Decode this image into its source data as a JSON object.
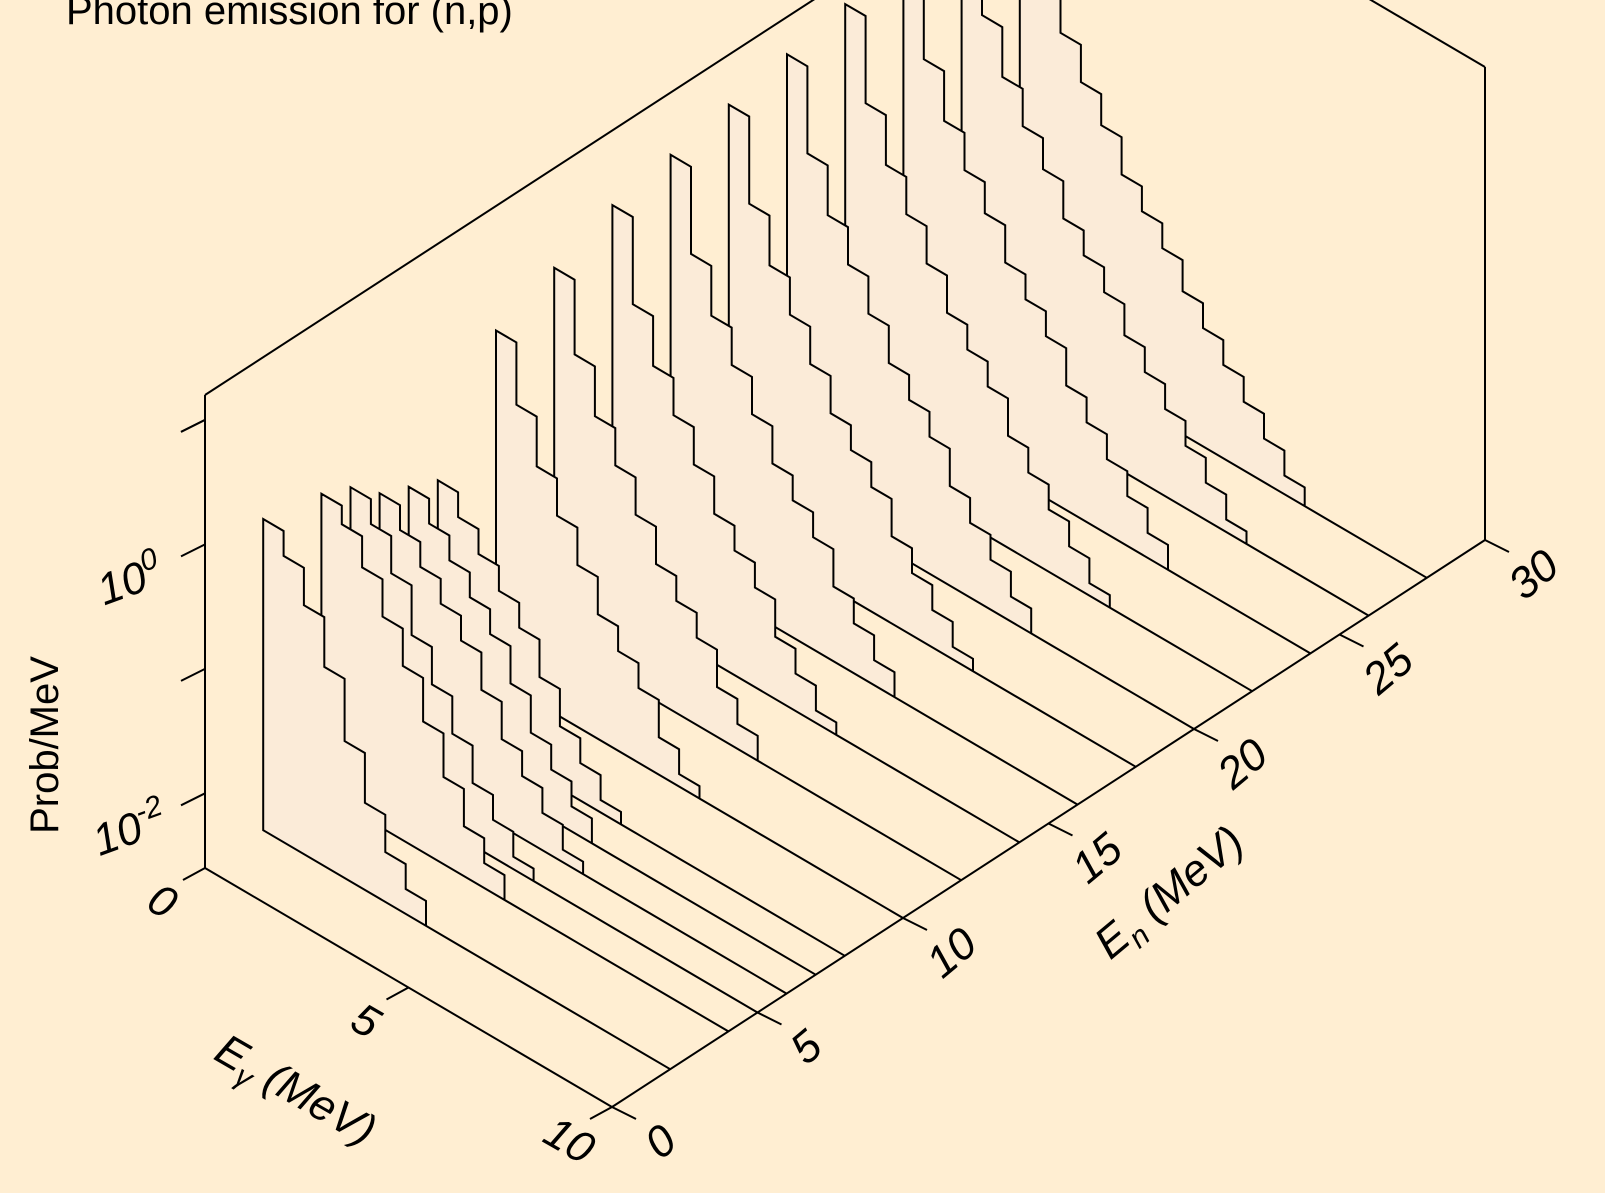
{
  "chart_data": {
    "type": "area",
    "title": "Photon emission for (n,p)",
    "xlabel": "E",
    "xlabel_sub": "γ",
    "xlabel_unit": " (MeV)",
    "ylabel": "E",
    "ylabel_sub": "n",
    "ylabel_unit": " (MeV)",
    "zlabel": "Prob/MeV",
    "x_ticks": [
      "0",
      "5",
      "10"
    ],
    "y_ticks": [
      "0",
      "5",
      "10",
      "15",
      "20",
      "25",
      "30"
    ],
    "z_ticks": [
      {
        "base": "10",
        "exp": "-2"
      },
      {
        "base": "10",
        "exp": "0"
      }
    ],
    "xlim": [
      0,
      10
    ],
    "ylim": [
      0,
      30
    ],
    "zlim_log10": [
      -2.6,
      1.2
    ],
    "z_scale": "log",
    "slice_x": [
      0.5,
      1.0,
      1.5,
      2.0,
      2.5,
      3.0,
      3.5,
      4.0,
      4.5,
      5.0,
      5.5,
      6.0,
      6.5,
      7.0,
      7.5,
      8.0
    ],
    "series": [
      {
        "En": 2,
        "log10_prob": [
          -0.1,
          -0.3,
          -0.6,
          -1.0,
          -1.5,
          -1.9,
          -2.2,
          -2.4,
          -2.6,
          -2.6,
          -2.6,
          -2.6,
          -2.6,
          -2.6,
          -2.6,
          -2.6
        ]
      },
      {
        "En": 4,
        "log10_prob": [
          -0.2,
          -0.35,
          -0.6,
          -0.9,
          -1.2,
          -1.55,
          -1.9,
          -2.2,
          -2.4,
          -2.6,
          -2.6,
          -2.6,
          -2.6,
          -2.6,
          -2.6,
          -2.6
        ]
      },
      {
        "En": 5,
        "log10_prob": [
          -0.3,
          -0.5,
          -0.8,
          -1.2,
          -1.5,
          -1.8,
          -2.1,
          -2.3,
          -2.5,
          -2.6,
          -2.6,
          -2.6,
          -2.6,
          -2.6,
          -2.6,
          -2.6
        ]
      },
      {
        "En": 6,
        "log10_prob": [
          -0.5,
          -0.7,
          -0.9,
          -1.1,
          -1.3,
          -1.6,
          -1.9,
          -2.1,
          -2.3,
          -2.5,
          -2.6,
          -2.6,
          -2.6,
          -2.6,
          -2.6,
          -2.6
        ]
      },
      {
        "En": 7,
        "log10_prob": [
          -0.6,
          -0.8,
          -1.0,
          -1.2,
          -1.4,
          -1.7,
          -2.0,
          -2.2,
          -2.4,
          -2.6,
          -2.6,
          -2.6,
          -2.6,
          -2.6,
          -2.6,
          -2.6
        ]
      },
      {
        "En": 8,
        "log10_prob": [
          -0.7,
          -0.9,
          -1.1,
          -1.3,
          -1.5,
          -1.8,
          -2.1,
          -2.3,
          -2.5,
          -2.6,
          -2.6,
          -2.6,
          -2.6,
          -2.6,
          -2.6,
          -2.6
        ]
      },
      {
        "En": 10,
        "log10_prob": [
          0.2,
          -0.3,
          -0.7,
          -1.0,
          -1.3,
          -1.6,
          -1.8,
          -2.0,
          -2.3,
          -2.5,
          -2.6,
          -2.6,
          -2.6,
          -2.6,
          -2.6,
          -2.6
        ]
      },
      {
        "En": 12,
        "log10_prob": [
          0.4,
          -0.2,
          -0.6,
          -0.9,
          -1.2,
          -1.5,
          -1.7,
          -1.9,
          -2.2,
          -2.4,
          -2.6,
          -2.6,
          -2.6,
          -2.6,
          -2.6,
          -2.6
        ]
      },
      {
        "En": 14,
        "log10_prob": [
          0.6,
          -0.1,
          -0.5,
          -0.8,
          -1.1,
          -1.4,
          -1.6,
          -1.8,
          -2.1,
          -2.3,
          -2.5,
          -2.6,
          -2.6,
          -2.6,
          -2.6,
          -2.6
        ]
      },
      {
        "En": 16,
        "log10_prob": [
          0.7,
          0.0,
          -0.4,
          -0.7,
          -1.0,
          -1.3,
          -1.5,
          -1.7,
          -2.0,
          -2.2,
          -2.4,
          -2.6,
          -2.6,
          -2.6,
          -2.6,
          -2.6
        ]
      },
      {
        "En": 18,
        "log10_prob": [
          0.8,
          0.1,
          -0.3,
          -0.6,
          -0.9,
          -1.2,
          -1.4,
          -1.6,
          -1.9,
          -2.1,
          -2.3,
          -2.5,
          -2.6,
          -2.6,
          -2.6,
          -2.6
        ]
      },
      {
        "En": 20,
        "log10_prob": [
          0.9,
          0.2,
          -0.2,
          -0.5,
          -0.8,
          -1.1,
          -1.3,
          -1.5,
          -1.8,
          -2.0,
          -2.2,
          -2.4,
          -2.6,
          -2.6,
          -2.6,
          -2.6
        ]
      },
      {
        "En": 22,
        "log10_prob": [
          1.0,
          0.3,
          -0.1,
          -0.4,
          -0.7,
          -1.0,
          -1.2,
          -1.4,
          -1.7,
          -1.9,
          -2.1,
          -2.3,
          -2.5,
          -2.6,
          -2.6,
          -2.6
        ]
      },
      {
        "En": 24,
        "log10_prob": [
          1.05,
          0.35,
          -0.05,
          -0.35,
          -0.6,
          -0.9,
          -1.1,
          -1.3,
          -1.6,
          -1.8,
          -2.0,
          -2.2,
          -2.4,
          -2.6,
          -2.6,
          -2.6
        ]
      },
      {
        "En": 26,
        "log10_prob": [
          1.1,
          0.4,
          0.0,
          -0.3,
          -0.55,
          -0.85,
          -1.05,
          -1.25,
          -1.5,
          -1.7,
          -1.9,
          -2.1,
          -2.3,
          -2.5,
          -2.6,
          -2.6
        ]
      },
      {
        "En": 28,
        "log10_prob": [
          1.15,
          0.45,
          0.05,
          -0.25,
          -0.5,
          -0.8,
          -1.0,
          -1.2,
          -1.45,
          -1.65,
          -1.85,
          -2.05,
          -2.25,
          -2.45,
          -2.6,
          -2.6
        ]
      }
    ],
    "grid": false,
    "legend": "none"
  }
}
